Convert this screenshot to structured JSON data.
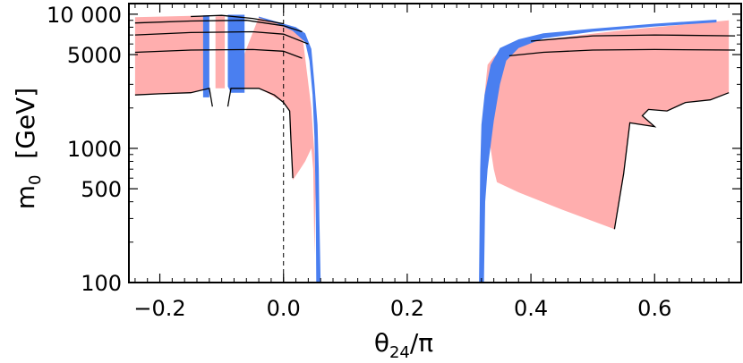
{
  "chart_data": {
    "type": "area",
    "xlabel": "θ24/π",
    "ylabel": "m0  [GeV]",
    "xlabel_parts": {
      "base": "θ",
      "sub": "24",
      "tail": "/π"
    },
    "ylabel_parts": {
      "base": "m",
      "sub": "0",
      "tail": "  [GeV]"
    },
    "x_scale": "linear",
    "y_scale": "log",
    "xlim": [
      -0.25,
      0.74
    ],
    "ylim": [
      100,
      12000
    ],
    "x_ticks": [
      -0.2,
      0.0,
      0.2,
      0.4,
      0.6
    ],
    "x_tick_labels": [
      "−0.2",
      "0.0",
      "0.2",
      "0.4",
      "0.6"
    ],
    "y_ticks": [
      100,
      500,
      1000,
      5000,
      10000
    ],
    "y_tick_labels": [
      "100",
      "500",
      "1000",
      "5000",
      "10 000"
    ],
    "grid": false,
    "reference_line": {
      "x": 0.0,
      "style": "dashed"
    },
    "colors": {
      "pink_region": "#ffaeae",
      "blue_region": "#4a7ff0",
      "contour": "#000000",
      "frame": "#000000"
    },
    "pink_regions": [
      {
        "name": "",
        "points": [
          [
            -0.24,
            2500
          ],
          [
            -0.24,
            9500
          ],
          [
            -0.12,
            9800
          ],
          [
            -0.12,
            2800
          ],
          [
            -0.115,
            2000
          ],
          [
            -0.11,
            2800
          ],
          [
            -0.11,
            9600
          ],
          [
            -0.095,
            9800
          ],
          [
            -0.095,
            2800
          ],
          [
            -0.09,
            2000
          ],
          [
            -0.085,
            2800
          ],
          [
            -0.04,
            9500
          ],
          [
            -0.005,
            8500
          ],
          [
            0.03,
            7200
          ],
          [
            0.045,
            2000
          ],
          [
            0.05,
            900
          ],
          [
            0.052,
            500
          ],
          [
            0.05,
            160
          ],
          [
            0.048,
            700
          ],
          [
            0.045,
            1000
          ],
          [
            0.035,
            800
          ],
          [
            0.025,
            680
          ],
          [
            0.015,
            580
          ],
          [
            0.012,
            1100
          ],
          [
            0.01,
            1900
          ],
          [
            0.0,
            2200
          ],
          [
            -0.02,
            2500
          ],
          [
            -0.04,
            2800
          ],
          [
            -0.085,
            2800
          ],
          [
            -0.09,
            2000
          ],
          [
            -0.095,
            2800
          ],
          [
            -0.11,
            2800
          ],
          [
            -0.115,
            2000
          ],
          [
            -0.12,
            2800
          ],
          [
            -0.15,
            2600
          ],
          [
            -0.24,
            2500
          ]
        ]
      },
      {
        "name": "",
        "points": [
          [
            0.325,
            2500
          ],
          [
            0.33,
            4200
          ],
          [
            0.34,
            4800
          ],
          [
            0.355,
            5600
          ],
          [
            0.37,
            5700
          ],
          [
            0.42,
            6500
          ],
          [
            0.55,
            7600
          ],
          [
            0.65,
            8400
          ],
          [
            0.72,
            9000
          ],
          [
            0.72,
            2600
          ],
          [
            0.69,
            2300
          ],
          [
            0.65,
            2200
          ],
          [
            0.62,
            1900
          ],
          [
            0.59,
            1950
          ],
          [
            0.58,
            1750
          ],
          [
            0.6,
            1450
          ],
          [
            0.56,
            1550
          ],
          [
            0.55,
            650
          ],
          [
            0.535,
            250
          ],
          [
            0.45,
            350
          ],
          [
            0.38,
            470
          ],
          [
            0.345,
            560
          ],
          [
            0.34,
            700
          ],
          [
            0.33,
            1400
          ],
          [
            0.325,
            2500
          ]
        ]
      }
    ],
    "blue_regions": [
      {
        "name": "",
        "points": [
          [
            -0.13,
            9800
          ],
          [
            -0.12,
            9800
          ],
          [
            -0.12,
            2400
          ],
          [
            -0.13,
            2400
          ]
        ]
      },
      {
        "name": "",
        "points": [
          [
            -0.09,
            9900
          ],
          [
            -0.063,
            9900
          ],
          [
            -0.063,
            2600
          ],
          [
            -0.085,
            2600
          ],
          [
            -0.09,
            2900
          ]
        ]
      },
      {
        "name": "",
        "points": [
          [
            -0.04,
            9600
          ],
          [
            0.0,
            8500
          ],
          [
            0.02,
            8000
          ],
          [
            0.035,
            7200
          ],
          [
            0.045,
            5500
          ],
          [
            0.05,
            3000
          ],
          [
            0.055,
            1500
          ],
          [
            0.057,
            700
          ],
          [
            0.058,
            300
          ],
          [
            0.06,
            100
          ],
          [
            0.053,
            100
          ],
          [
            0.052,
            400
          ],
          [
            0.05,
            1200
          ],
          [
            0.047,
            2500
          ],
          [
            0.042,
            4500
          ],
          [
            0.035,
            6200
          ],
          [
            0.015,
            7500
          ],
          [
            -0.01,
            8500
          ],
          [
            -0.04,
            9400
          ]
        ]
      },
      {
        "name": "",
        "points": [
          [
            0.316,
            100
          ],
          [
            0.324,
            100
          ],
          [
            0.326,
            400
          ],
          [
            0.33,
            700
          ],
          [
            0.34,
            1600
          ],
          [
            0.35,
            3000
          ],
          [
            0.36,
            4500
          ],
          [
            0.38,
            5600
          ],
          [
            0.42,
            6600
          ],
          [
            0.5,
            7400
          ],
          [
            0.6,
            8100
          ],
          [
            0.7,
            8700
          ],
          [
            0.7,
            9100
          ],
          [
            0.6,
            8500
          ],
          [
            0.5,
            7800
          ],
          [
            0.42,
            7200
          ],
          [
            0.38,
            6500
          ],
          [
            0.35,
            5600
          ],
          [
            0.335,
            4200
          ],
          [
            0.325,
            2500
          ],
          [
            0.32,
            1500
          ],
          [
            0.318,
            700
          ]
        ]
      }
    ],
    "contours": [
      {
        "name": "",
        "points": [
          [
            -0.24,
            2500
          ],
          [
            -0.2,
            2550
          ],
          [
            -0.15,
            2600
          ],
          [
            -0.12,
            2800
          ],
          [
            -0.115,
            2050
          ]
        ]
      },
      {
        "name": "",
        "points": [
          [
            -0.09,
            2050
          ],
          [
            -0.085,
            2800
          ],
          [
            -0.04,
            2800
          ],
          [
            -0.015,
            2500
          ],
          [
            0.0,
            2200
          ],
          [
            0.01,
            1900
          ],
          [
            0.012,
            1150
          ],
          [
            0.015,
            600
          ]
        ]
      },
      {
        "name": "",
        "points": [
          [
            -0.24,
            5200
          ],
          [
            -0.15,
            5400
          ],
          [
            -0.05,
            5450
          ],
          [
            0.0,
            5300
          ],
          [
            0.03,
            4700
          ]
        ]
      },
      {
        "name": "",
        "points": [
          [
            -0.24,
            7000
          ],
          [
            -0.15,
            7300
          ],
          [
            -0.05,
            7400
          ],
          [
            0.0,
            7100
          ],
          [
            0.04,
            6000
          ]
        ]
      },
      {
        "name": "",
        "points": [
          [
            -0.24,
            8600
          ],
          [
            -0.15,
            8900
          ],
          [
            -0.06,
            9000
          ],
          [
            0.0,
            8200
          ],
          [
            0.03,
            7400
          ]
        ]
      },
      {
        "name": "",
        "points": [
          [
            -0.15,
            9600
          ],
          [
            -0.1,
            9800
          ],
          [
            -0.05,
            9300
          ],
          [
            0.0,
            8500
          ]
        ]
      },
      {
        "name": "",
        "points": [
          [
            0.365,
            4900
          ],
          [
            0.42,
            5200
          ],
          [
            0.5,
            5400
          ],
          [
            0.6,
            5450
          ],
          [
            0.73,
            5400
          ]
        ]
      },
      {
        "name": "",
        "points": [
          [
            0.4,
            6300
          ],
          [
            0.5,
            6900
          ],
          [
            0.6,
            7000
          ],
          [
            0.73,
            6900
          ]
        ]
      },
      {
        "name": "",
        "points": [
          [
            0.72,
            2600
          ],
          [
            0.69,
            2300
          ],
          [
            0.65,
            2200
          ],
          [
            0.62,
            1900
          ],
          [
            0.59,
            1950
          ],
          [
            0.58,
            1750
          ],
          [
            0.6,
            1450
          ],
          [
            0.56,
            1550
          ],
          [
            0.55,
            650
          ],
          [
            0.535,
            250
          ]
        ]
      }
    ]
  }
}
